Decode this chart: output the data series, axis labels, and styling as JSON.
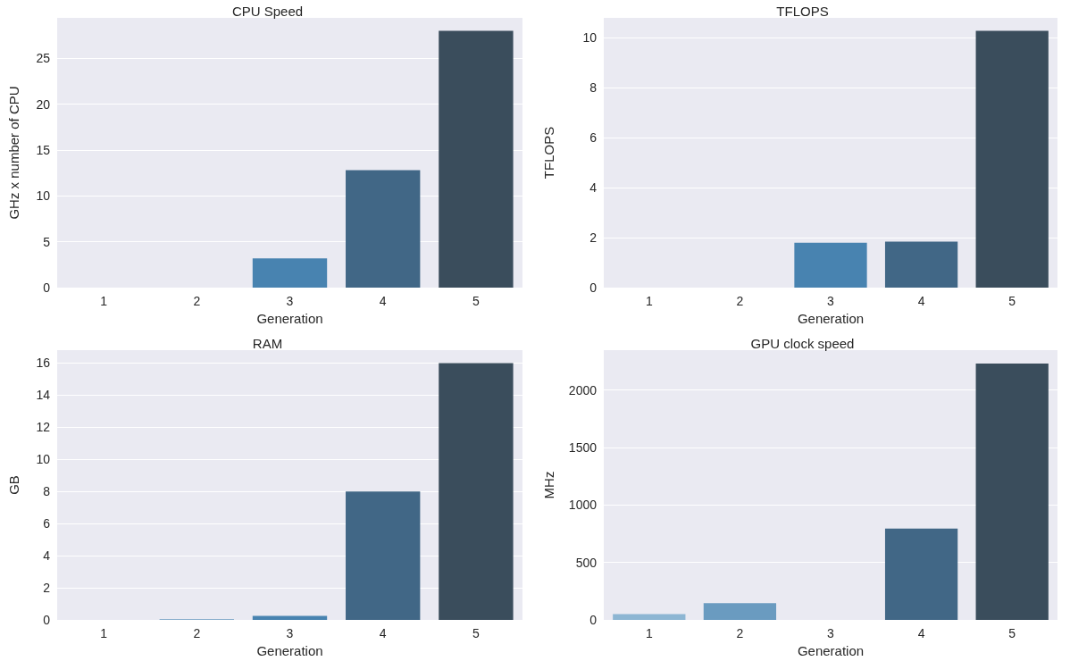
{
  "chart_data": [
    {
      "type": "bar",
      "title": "CPU Speed",
      "xlabel": "Generation",
      "ylabel": "GHz x number of CPU",
      "categories": [
        "1",
        "2",
        "3",
        "4",
        "5"
      ],
      "values": [
        0,
        0,
        3.2,
        12.8,
        28
      ],
      "colors": [
        "#8db6d3",
        "#6a9bc0",
        "#4883b0",
        "#416786",
        "#3a4d5c"
      ],
      "ylim": [
        0,
        29.4
      ],
      "yticks": [
        0,
        5,
        10,
        15,
        20,
        25
      ],
      "grid": "y"
    },
    {
      "type": "bar",
      "title": "TFLOPS",
      "xlabel": "Generation",
      "ylabel": "TFLOPS",
      "categories": [
        "1",
        "2",
        "3",
        "4",
        "5"
      ],
      "values": [
        0,
        0,
        1.8,
        1.84,
        10.28
      ],
      "colors": [
        "#8db6d3",
        "#6a9bc0",
        "#4883b0",
        "#416786",
        "#3a4d5c"
      ],
      "ylim": [
        0,
        10.8
      ],
      "yticks": [
        0,
        2,
        4,
        6,
        8,
        10
      ],
      "grid": "y"
    },
    {
      "type": "bar",
      "title": "RAM",
      "xlabel": "Generation",
      "ylabel": "GB",
      "categories": [
        "1",
        "2",
        "3",
        "4",
        "5"
      ],
      "values": [
        0,
        0.04,
        0.25,
        8,
        16
      ],
      "colors": [
        "#8db6d3",
        "#6a9bc0",
        "#4883b0",
        "#416786",
        "#3a4d5c"
      ],
      "ylim": [
        0,
        16.8
      ],
      "yticks": [
        0,
        2,
        4,
        6,
        8,
        10,
        12,
        14,
        16
      ],
      "grid": "y"
    },
    {
      "type": "bar",
      "title": "GPU clock speed",
      "xlabel": "Generation",
      "ylabel": "MHz",
      "categories": [
        "1",
        "2",
        "3",
        "4",
        "5"
      ],
      "values": [
        50,
        145,
        0,
        795,
        2230
      ],
      "colors": [
        "#8db6d3",
        "#6a9bc0",
        "#4883b0",
        "#416786",
        "#3a4d5c"
      ],
      "ylim": [
        0,
        2346
      ],
      "yticks": [
        0,
        500,
        1000,
        1500,
        2000
      ],
      "grid": "y"
    }
  ]
}
